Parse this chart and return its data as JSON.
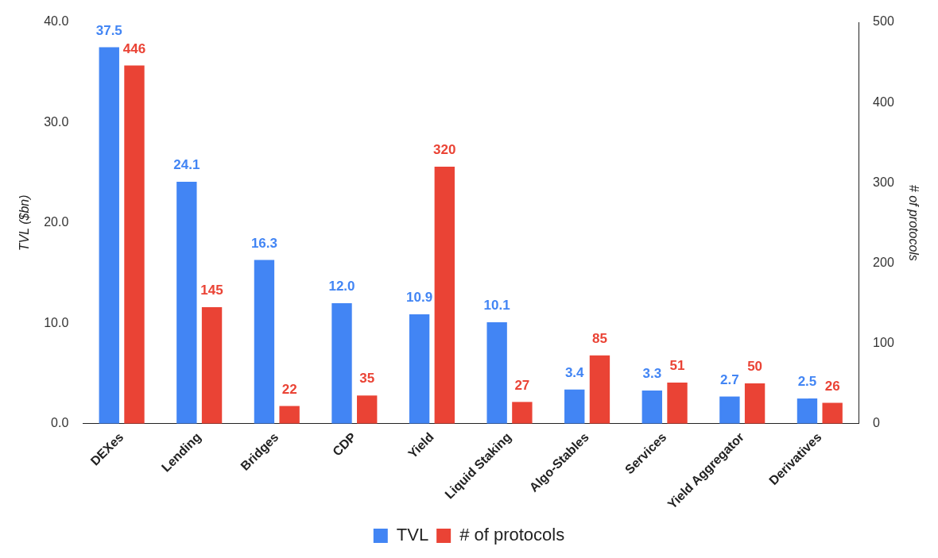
{
  "chart_data": {
    "type": "bar",
    "ylabel": "TVL ($bn)",
    "y2label": "# of protocols",
    "categories": [
      "DEXes",
      "Lending",
      "Bridges",
      "CDP",
      "Yield",
      "Liquid Staking",
      "Algo-Stables",
      "Services",
      "Yield Aggregator",
      "Derivatives"
    ],
    "series": [
      {
        "name": "TVL",
        "color": "#4285f4",
        "values": [
          37.5,
          24.1,
          16.3,
          12.0,
          10.9,
          10.1,
          3.4,
          3.3,
          2.7,
          2.5
        ],
        "value_labels": [
          "37.5",
          "24.1",
          "16.3",
          "12.0",
          "10.9",
          "10.1",
          "3.4",
          "3.3",
          "2.7",
          "2.5"
        ]
      },
      {
        "name": "# of protocols",
        "color": "#ea4335",
        "axis": "y2",
        "values": [
          446,
          145,
          22,
          35,
          320,
          27,
          85,
          51,
          50,
          26
        ],
        "value_labels": [
          "446",
          "145",
          "22",
          "35",
          "320",
          "27",
          "85",
          "51",
          "50",
          "26"
        ]
      }
    ],
    "ylim": [
      0,
      40
    ],
    "yticks": [
      {
        "value": 0,
        "label": "0.0"
      },
      {
        "value": 10,
        "label": "10.0"
      },
      {
        "value": 20,
        "label": "20.0"
      },
      {
        "value": 30,
        "label": "30.0"
      },
      {
        "value": 40,
        "label": "40.0"
      }
    ],
    "y2lim": [
      0,
      500
    ],
    "y2ticks": [
      0,
      100,
      200,
      300,
      400,
      500
    ],
    "grid": false,
    "legend": "bottom"
  }
}
